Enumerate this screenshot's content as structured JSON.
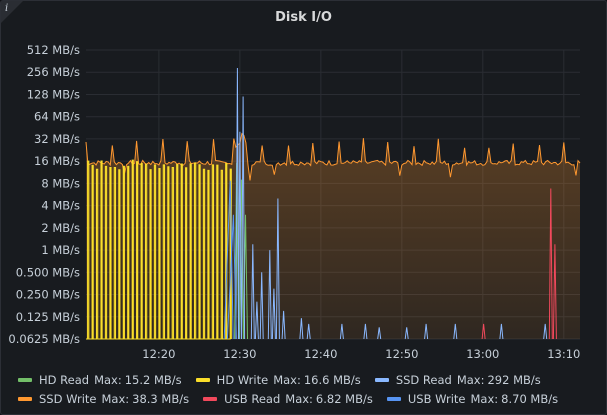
{
  "panel": {
    "title": "Disk I/O",
    "info_icon": "info-icon"
  },
  "chart_data": {
    "type": "line",
    "title": "Disk I/O",
    "y_scale": "log2",
    "y_unit": "MB/s",
    "ylim": [
      0.0625,
      512
    ],
    "y_ticks": [
      "512 MB/s",
      "256 MB/s",
      "128 MB/s",
      "64 MB/s",
      "32 MB/s",
      "16 MB/s",
      "8 MB/s",
      "4 MB/s",
      "2 MB/s",
      "1 MB/s",
      "0.500 MB/s",
      "0.250 MB/s",
      "0.125 MB/s",
      "0.0625 MB/s"
    ],
    "x_ticks": [
      "12:20",
      "12:30",
      "12:40",
      "12:50",
      "13:00",
      "13:10"
    ],
    "xlim": [
      "12:11",
      "13:12"
    ],
    "grid": true,
    "legend_position": "bottom",
    "series": [
      {
        "name": "HD Read",
        "color": "#73bf69",
        "max_label": "Max:",
        "max": "15.2 MB/s"
      },
      {
        "name": "HD Write",
        "color": "#fade2a",
        "max_label": "Max:",
        "max": "16.6 MB/s"
      },
      {
        "name": "SSD Read",
        "color": "#8ab8ff",
        "max_label": "Max:",
        "max": "292 MB/s"
      },
      {
        "name": "SSD Write",
        "color": "#ff9830",
        "max_label": "Max:",
        "max": "38.3 MB/s"
      },
      {
        "name": "USB Read",
        "color": "#f2495c",
        "max_label": "Max:",
        "max": "6.82 MB/s"
      },
      {
        "name": "USB Write",
        "color": "#5794f2",
        "max_label": "Max:",
        "max": "8.70 MB/s"
      }
    ]
  }
}
